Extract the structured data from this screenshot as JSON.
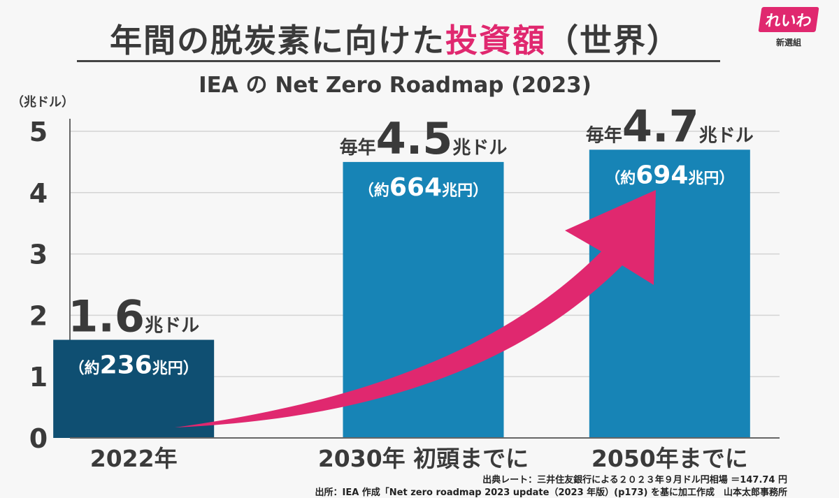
{
  "header": {
    "title_part1": "年間の",
    "title_part2": "脱炭素に向けた",
    "title_part3": "投資額",
    "title_part4": "（世界）",
    "subtitle": "IEA の Net Zero Roadmap (2023)"
  },
  "logo": {
    "main": "れいわ",
    "sub": "新選組"
  },
  "chart_data": {
    "type": "bar",
    "categories": [
      "2022年",
      "2030年 初頭までに",
      "2050年までに"
    ],
    "values": [
      1.6,
      4.5,
      4.7
    ],
    "ylim": [
      0,
      5
    ],
    "yticks": [
      "0",
      "1",
      "2",
      "3",
      "4",
      "5"
    ],
    "yunit": "（兆ドル）",
    "grid": true,
    "bar_colors": [
      "#0f4f72",
      "#1784b6",
      "#1784b6"
    ],
    "arrow_color": "#e0286f",
    "annotations": [
      {
        "prefix": "",
        "value": "1.6",
        "unit": "兆ドル",
        "yen_open": "（約",
        "yen_value": "236",
        "yen_unit": "兆円）"
      },
      {
        "prefix": "毎年",
        "value": "4.5",
        "unit": "兆ドル",
        "yen_open": "（約",
        "yen_value": "664",
        "yen_unit": "兆円）"
      },
      {
        "prefix": "毎年",
        "value": "4.7",
        "unit": "兆ドル",
        "yen_open": "（約",
        "yen_value": "694",
        "yen_unit": "兆円）"
      }
    ]
  },
  "footer": {
    "rate_note": "出典レート：三井住友銀行による２０２３年９月ドル円相場 ＝147.74 円",
    "source_note": "出所：IEA 作成「Net zero roadmap 2023 update（2023 年版）(p173) を基に加工作成　山本太郎事務所"
  }
}
